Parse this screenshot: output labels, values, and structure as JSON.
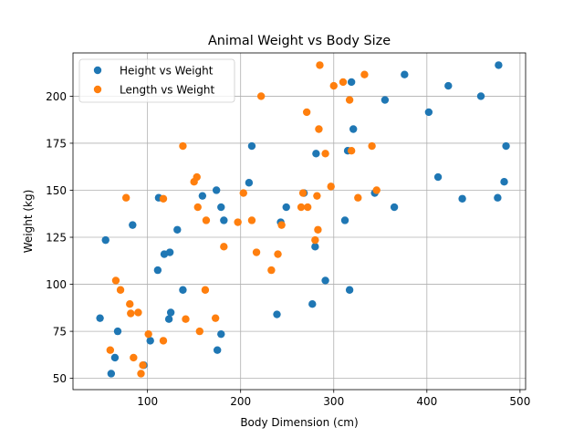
{
  "chart_data": {
    "type": "scatter",
    "title": "Animal Weight vs Body Size",
    "xlabel": "Body Dimension (cm)",
    "ylabel": "Weight (kg)",
    "xlim": [
      20,
      506
    ],
    "ylim": [
      44,
      223
    ],
    "xticks": [
      100,
      200,
      300,
      400,
      500
    ],
    "yticks": [
      50,
      75,
      100,
      125,
      150,
      175,
      200
    ],
    "grid": true,
    "legend_position": "upper-left",
    "series": [
      {
        "name": "Height vs Weight",
        "color": "#1f77b4",
        "points": [
          [
            49,
            82
          ],
          [
            55,
            123.5
          ],
          [
            61,
            52.5
          ],
          [
            65,
            61
          ],
          [
            68,
            75
          ],
          [
            84,
            131.5
          ],
          [
            96,
            57
          ],
          [
            103,
            70
          ],
          [
            111,
            107.5
          ],
          [
            112,
            146
          ],
          [
            118,
            116
          ],
          [
            123,
            81.5
          ],
          [
            124,
            117
          ],
          [
            125,
            85
          ],
          [
            132,
            129
          ],
          [
            138,
            97
          ],
          [
            159,
            147
          ],
          [
            174,
            150
          ],
          [
            175,
            65
          ],
          [
            179,
            141
          ],
          [
            179,
            73.5
          ],
          [
            182,
            134
          ],
          [
            209,
            154
          ],
          [
            212,
            173.5
          ],
          [
            239,
            84
          ],
          [
            243,
            133
          ],
          [
            249,
            141
          ],
          [
            268,
            148.5
          ],
          [
            277,
            89.5
          ],
          [
            280,
            120
          ],
          [
            281,
            169.5
          ],
          [
            291,
            102
          ],
          [
            312,
            134
          ],
          [
            315,
            171
          ],
          [
            317,
            97
          ],
          [
            319,
            207.5
          ],
          [
            321,
            182.5
          ],
          [
            344,
            148.5
          ],
          [
            355,
            198
          ],
          [
            365,
            141
          ],
          [
            376,
            211.5
          ],
          [
            402,
            191.5
          ],
          [
            412,
            157
          ],
          [
            423,
            205.5
          ],
          [
            438,
            145.5
          ],
          [
            458,
            200
          ],
          [
            476,
            146
          ],
          [
            477,
            216.5
          ],
          [
            483,
            154.5
          ],
          [
            485,
            173.5
          ]
        ]
      },
      {
        "name": "Length vs Weight",
        "color": "#ff7f0e",
        "points": [
          [
            60,
            65
          ],
          [
            66,
            102
          ],
          [
            71,
            97
          ],
          [
            77,
            146
          ],
          [
            81,
            89.5
          ],
          [
            82,
            84.5
          ],
          [
            85,
            61
          ],
          [
            90,
            85
          ],
          [
            93,
            52.5
          ],
          [
            95,
            57
          ],
          [
            101,
            73.5
          ],
          [
            117,
            70
          ],
          [
            117,
            145.5
          ],
          [
            138,
            173.5
          ],
          [
            141,
            81.5
          ],
          [
            150,
            154.5
          ],
          [
            153,
            157
          ],
          [
            154,
            141
          ],
          [
            156,
            75
          ],
          [
            162,
            97
          ],
          [
            163,
            134
          ],
          [
            173,
            82
          ],
          [
            182,
            120
          ],
          [
            197,
            133
          ],
          [
            203,
            148.5
          ],
          [
            212,
            134
          ],
          [
            217,
            117
          ],
          [
            222,
            200
          ],
          [
            233,
            107.5
          ],
          [
            240,
            116
          ],
          [
            244,
            131.5
          ],
          [
            265,
            141
          ],
          [
            267,
            148.5
          ],
          [
            271,
            191.5
          ],
          [
            272,
            141
          ],
          [
            280,
            123.5
          ],
          [
            282,
            147
          ],
          [
            283,
            129
          ],
          [
            284,
            182.5
          ],
          [
            285,
            216.5
          ],
          [
            291,
            169.5
          ],
          [
            297,
            152
          ],
          [
            300,
            205.5
          ],
          [
            310,
            207.5
          ],
          [
            317,
            198
          ],
          [
            319,
            171
          ],
          [
            326,
            146
          ],
          [
            333,
            211.5
          ],
          [
            341,
            173.5
          ],
          [
            346,
            150
          ]
        ]
      }
    ]
  }
}
